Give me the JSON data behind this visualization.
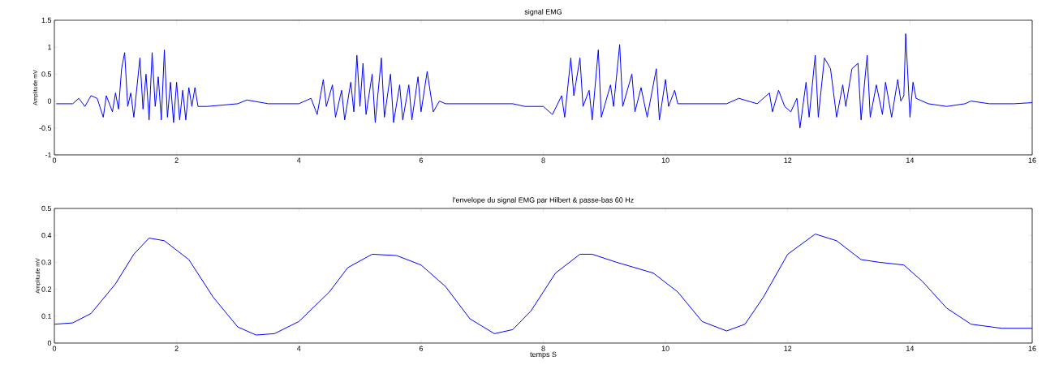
{
  "chart_data": [
    {
      "type": "line",
      "title": "signal EMG",
      "ylabel": "Amplitude mV",
      "xlim": [
        0,
        16
      ],
      "ylim": [
        -1,
        1.5
      ],
      "xticks": [
        0,
        2,
        4,
        6,
        8,
        10,
        12,
        14,
        16
      ],
      "yticks": [
        -1,
        -0.5,
        0,
        0.5,
        1,
        1.5
      ],
      "line_style": "solid",
      "series": [
        {
          "color": "#0000ff",
          "x": [
            0.03,
            0.3,
            0.4,
            0.5,
            0.6,
            0.7,
            0.8,
            0.85,
            0.95,
            1.0,
            1.05,
            1.1,
            1.15,
            1.2,
            1.25,
            1.3,
            1.4,
            1.45,
            1.5,
            1.55,
            1.6,
            1.65,
            1.7,
            1.75,
            1.8,
            1.85,
            1.9,
            1.95,
            2.0,
            2.05,
            2.1,
            2.15,
            2.2,
            2.25,
            2.3,
            2.35,
            2.5,
            3.0,
            3.15,
            3.5,
            4.0,
            4.2,
            4.3,
            4.4,
            4.45,
            4.55,
            4.6,
            4.7,
            4.75,
            4.85,
            4.9,
            4.95,
            5.0,
            5.05,
            5.1,
            5.2,
            5.25,
            5.35,
            5.4,
            5.5,
            5.55,
            5.65,
            5.7,
            5.8,
            5.85,
            5.95,
            6.0,
            6.1,
            6.2,
            6.3,
            6.4,
            7.5,
            7.7,
            8.0,
            8.15,
            8.3,
            8.35,
            8.45,
            8.5,
            8.6,
            8.65,
            8.75,
            8.8,
            8.9,
            8.95,
            9.1,
            9.15,
            9.25,
            9.3,
            9.45,
            9.5,
            9.6,
            9.7,
            9.85,
            9.9,
            10.0,
            10.05,
            10.15,
            10.2,
            11.0,
            11.2,
            11.5,
            11.7,
            11.75,
            11.85,
            11.95,
            12.05,
            12.15,
            12.2,
            12.3,
            12.35,
            12.45,
            12.5,
            12.6,
            12.7,
            12.8,
            12.9,
            12.95,
            13.05,
            13.15,
            13.2,
            13.3,
            13.35,
            13.45,
            13.55,
            13.6,
            13.7,
            13.8,
            13.85,
            13.9,
            13.93,
            14.0,
            14.05,
            14.1,
            14.3,
            14.6,
            14.9,
            15.0,
            15.3,
            15.7,
            16
          ],
          "values": [
            -0.05,
            -0.05,
            0.05,
            -0.1,
            0.1,
            0.05,
            -0.3,
            0.1,
            -0.2,
            0.15,
            -0.15,
            0.6,
            0.9,
            -0.1,
            0.15,
            -0.3,
            0.8,
            -0.15,
            0.5,
            -0.35,
            0.9,
            -0.1,
            0.45,
            -0.35,
            0.95,
            -0.3,
            0.35,
            -0.4,
            0.35,
            -0.35,
            0.2,
            -0.35,
            0.25,
            -0.1,
            0.25,
            -0.1,
            -0.1,
            -0.05,
            0.02,
            -0.05,
            -0.05,
            0.05,
            -0.25,
            0.4,
            -0.1,
            0.3,
            -0.3,
            0.2,
            -0.35,
            0.35,
            -0.2,
            0.85,
            -0.1,
            0.7,
            -0.25,
            0.5,
            -0.4,
            0.8,
            -0.3,
            0.5,
            -0.4,
            0.3,
            -0.35,
            0.3,
            -0.35,
            0.45,
            -0.2,
            0.55,
            -0.2,
            0.0,
            -0.05,
            -0.05,
            -0.1,
            -0.1,
            -0.25,
            0.1,
            -0.3,
            0.8,
            0.1,
            0.8,
            -0.1,
            0.2,
            -0.35,
            0.95,
            -0.3,
            0.3,
            -0.1,
            1.05,
            -0.1,
            0.5,
            -0.2,
            0.25,
            -0.3,
            0.6,
            -0.35,
            0.4,
            -0.1,
            0.2,
            -0.05,
            -0.05,
            0.05,
            -0.05,
            0.15,
            -0.2,
            0.2,
            -0.1,
            -0.2,
            0.05,
            -0.5,
            0.35,
            -0.3,
            0.85,
            -0.3,
            0.8,
            0.6,
            -0.3,
            0.3,
            -0.1,
            0.6,
            0.7,
            -0.35,
            0.85,
            -0.3,
            0.3,
            -0.25,
            0.35,
            -0.3,
            0.4,
            0.0,
            0.1,
            1.25,
            -0.3,
            0.35,
            0.05,
            -0.05,
            -0.1,
            -0.05,
            0.0,
            -0.05,
            -0.05,
            -0.03
          ]
        }
      ]
    },
    {
      "type": "line",
      "title": "l'envelope du signal EMG par Hilbert & passe-bas 60 Hz",
      "xlabel": "temps S",
      "ylabel": "Amplitude mV",
      "xlim": [
        0,
        16
      ],
      "ylim": [
        0,
        0.5
      ],
      "xticks": [
        0,
        2,
        4,
        6,
        8,
        10,
        12,
        14,
        16
      ],
      "yticks": [
        0,
        0.1,
        0.2,
        0.3,
        0.4,
        0.5
      ],
      "line_style": "solid",
      "series": [
        {
          "color": "#0000ff",
          "x": [
            0,
            0.3,
            0.6,
            1.0,
            1.3,
            1.55,
            1.8,
            2.2,
            2.6,
            3.0,
            3.3,
            3.6,
            4.0,
            4.5,
            4.8,
            5.2,
            5.6,
            6.0,
            6.4,
            6.8,
            7.2,
            7.5,
            7.8,
            8.2,
            8.6,
            8.8,
            9.2,
            9.8,
            10.2,
            10.6,
            11.0,
            11.3,
            11.6,
            12.0,
            12.45,
            12.8,
            13.2,
            13.5,
            13.9,
            14.2,
            14.6,
            15.0,
            15.5,
            16
          ],
          "values": [
            0.07,
            0.075,
            0.11,
            0.22,
            0.33,
            0.39,
            0.38,
            0.31,
            0.17,
            0.06,
            0.03,
            0.035,
            0.08,
            0.19,
            0.28,
            0.33,
            0.325,
            0.29,
            0.21,
            0.09,
            0.035,
            0.05,
            0.12,
            0.26,
            0.33,
            0.33,
            0.3,
            0.26,
            0.19,
            0.08,
            0.045,
            0.07,
            0.17,
            0.33,
            0.405,
            0.38,
            0.31,
            0.3,
            0.29,
            0.23,
            0.13,
            0.07,
            0.055,
            0.055
          ]
        }
      ]
    }
  ]
}
